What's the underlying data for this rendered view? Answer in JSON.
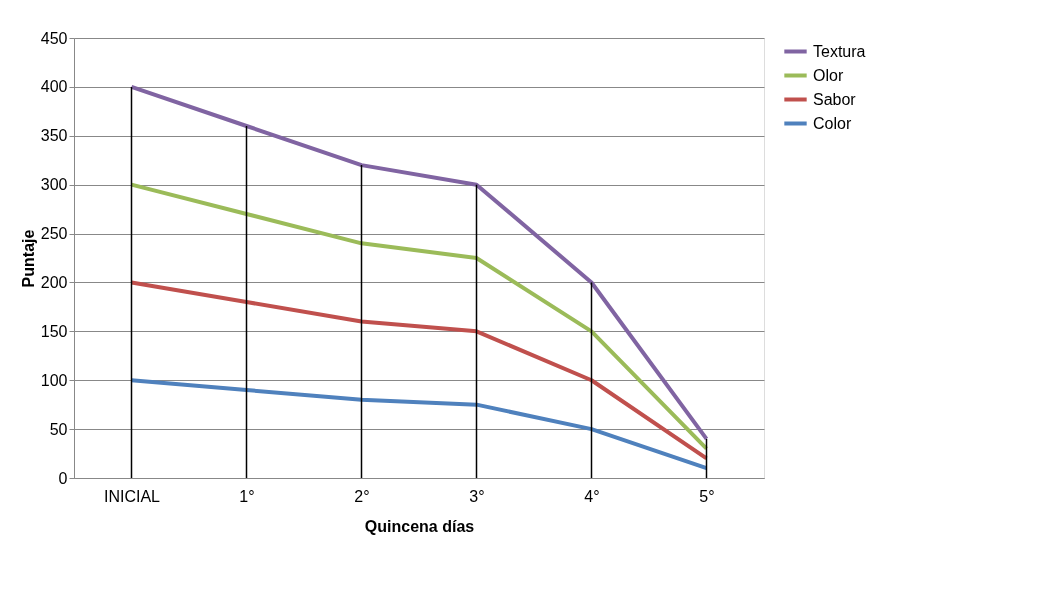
{
  "chart_data": {
    "type": "line",
    "xlabel": "Quincena días",
    "ylabel": "Puntaje",
    "categories": [
      "INICIAL",
      "1°",
      "2°",
      "3°",
      "4°",
      "5°"
    ],
    "series": [
      {
        "name": "Textura",
        "color": "#8064a2",
        "values": [
          400,
          360,
          320,
          300,
          200,
          40
        ]
      },
      {
        "name": "Olor",
        "color": "#9bbb59",
        "values": [
          300,
          270,
          240,
          225,
          150,
          30
        ]
      },
      {
        "name": "Sabor",
        "color": "#c0504d",
        "values": [
          200,
          180,
          160,
          150,
          100,
          20
        ]
      },
      {
        "name": "Color",
        "color": "#4f81bd",
        "values": [
          100,
          90,
          80,
          75,
          50,
          10
        ]
      }
    ],
    "ylim": [
      0,
      450
    ],
    "yticks": [
      0,
      50,
      100,
      150,
      200,
      250,
      300,
      350,
      400,
      450
    ],
    "ref_lines": [
      {
        "axis": "x",
        "value": "INICIAL",
        "color": "#000000"
      },
      {
        "axis": "x",
        "value": "1°",
        "color": "#000000"
      },
      {
        "axis": "x",
        "value": "2°",
        "color": "#000000"
      },
      {
        "axis": "x",
        "value": "3°",
        "color": "#000000"
      },
      {
        "axis": "x",
        "value": "4°",
        "color": "#000000"
      },
      {
        "axis": "x",
        "value": "5°",
        "color": "#000000"
      }
    ],
    "grid": "y",
    "legend": "right",
    "marker": "none",
    "line_style": "solid"
  }
}
